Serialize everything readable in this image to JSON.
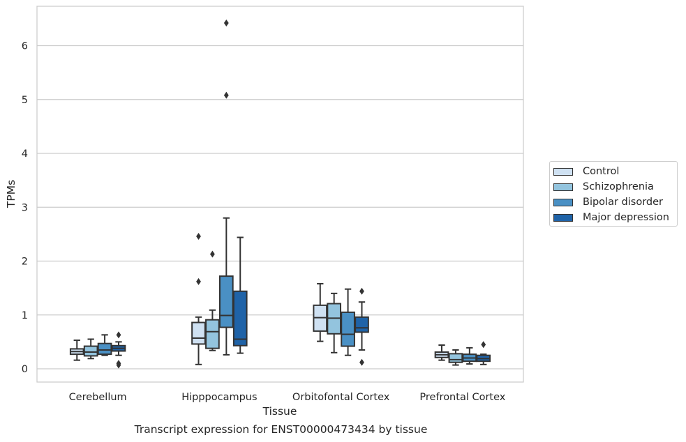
{
  "caption": "Transcript expression for ENST00000473434 by tissue",
  "chart_data": {
    "type": "box",
    "title": "",
    "xlabel": "Tissue",
    "ylabel": "TPMs",
    "ylim": [
      -0.25,
      6.75
    ],
    "yticks": [
      0,
      1,
      2,
      3,
      4,
      5,
      6
    ],
    "grid": "y",
    "legend_position": "right",
    "categories": [
      "Cerebellum",
      "Hipppocampus",
      "Orbitofontal Cortex",
      "Prefrontal Cortex"
    ],
    "series": [
      {
        "name": "Control",
        "color": "#cfe1f2",
        "boxes": [
          {
            "whislo": 0.16,
            "q1": 0.27,
            "med": 0.32,
            "q3": 0.37,
            "whishi": 0.53,
            "fliers": []
          },
          {
            "whislo": 0.08,
            "q1": 0.46,
            "med": 0.57,
            "q3": 0.86,
            "whishi": 0.96,
            "fliers": [
              1.62,
              2.46
            ]
          },
          {
            "whislo": 0.51,
            "q1": 0.7,
            "med": 0.95,
            "q3": 1.18,
            "whishi": 1.58,
            "fliers": []
          },
          {
            "whislo": 0.16,
            "q1": 0.21,
            "med": 0.26,
            "q3": 0.31,
            "whishi": 0.44,
            "fliers": []
          }
        ]
      },
      {
        "name": "Schizophrenia",
        "color": "#93c4de",
        "boxes": [
          {
            "whislo": 0.19,
            "q1": 0.24,
            "med": 0.31,
            "q3": 0.42,
            "whishi": 0.55,
            "fliers": []
          },
          {
            "whislo": 0.34,
            "q1": 0.38,
            "med": 0.69,
            "q3": 0.91,
            "whishi": 1.09,
            "fliers": [
              2.13
            ]
          },
          {
            "whislo": 0.3,
            "q1": 0.65,
            "med": 0.94,
            "q3": 1.21,
            "whishi": 1.4,
            "fliers": []
          },
          {
            "whislo": 0.07,
            "q1": 0.12,
            "med": 0.17,
            "q3": 0.28,
            "whishi": 0.35,
            "fliers": []
          }
        ]
      },
      {
        "name": "Bipolar disorder",
        "color": "#4a90c4",
        "boxes": [
          {
            "whislo": 0.25,
            "q1": 0.27,
            "med": 0.35,
            "q3": 0.47,
            "whishi": 0.63,
            "fliers": []
          },
          {
            "whislo": 0.26,
            "q1": 0.77,
            "med": 0.99,
            "q3": 1.72,
            "whishi": 2.8,
            "fliers": [
              5.08,
              6.42
            ]
          },
          {
            "whislo": 0.25,
            "q1": 0.42,
            "med": 0.64,
            "q3": 1.05,
            "whishi": 1.48,
            "fliers": []
          },
          {
            "whislo": 0.09,
            "q1": 0.14,
            "med": 0.2,
            "q3": 0.27,
            "whishi": 0.39,
            "fliers": []
          }
        ]
      },
      {
        "name": "Major depression",
        "color": "#1f63a8",
        "boxes": [
          {
            "whislo": 0.25,
            "q1": 0.33,
            "med": 0.38,
            "q3": 0.43,
            "whishi": 0.5,
            "fliers": [
              0.07,
              0.1,
              0.63
            ]
          },
          {
            "whislo": 0.29,
            "q1": 0.43,
            "med": 0.55,
            "q3": 1.44,
            "whishi": 2.44,
            "fliers": []
          },
          {
            "whislo": 0.35,
            "q1": 0.68,
            "med": 0.76,
            "q3": 0.96,
            "whishi": 1.24,
            "fliers": [
              0.12,
              1.44
            ]
          },
          {
            "whislo": 0.08,
            "q1": 0.14,
            "med": 0.19,
            "q3": 0.25,
            "whishi": 0.27,
            "fliers": [
              0.45
            ]
          }
        ]
      }
    ]
  }
}
